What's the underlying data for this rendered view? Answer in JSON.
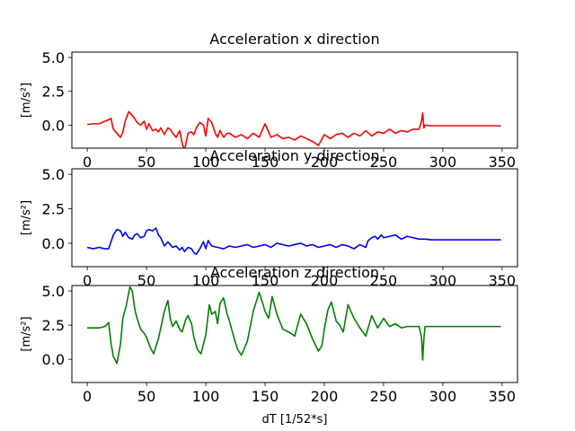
{
  "chart_data": [
    {
      "type": "line",
      "title": "Acceleration x direction",
      "ylabel": "[m/s²]",
      "xlabel": "",
      "xlim": [
        -13,
        363
      ],
      "ylim": [
        -1.7,
        5.4
      ],
      "xticks": [
        0,
        50,
        100,
        150,
        200,
        250,
        300,
        350
      ],
      "yticks": [
        0.0,
        2.5,
        5.0
      ],
      "grid": false,
      "series": [
        {
          "color": "#ff0000",
          "x": [
            0,
            5,
            10,
            15,
            18,
            20,
            22,
            25,
            28,
            30,
            32,
            35,
            38,
            40,
            42,
            45,
            48,
            50,
            52,
            55,
            58,
            60,
            62,
            65,
            68,
            70,
            72,
            75,
            78,
            80,
            82,
            85,
            88,
            90,
            92,
            95,
            98,
            100,
            102,
            105,
            108,
            110,
            112,
            115,
            118,
            120,
            125,
            130,
            135,
            140,
            145,
            150,
            155,
            160,
            165,
            170,
            175,
            180,
            185,
            190,
            195,
            200,
            205,
            210,
            215,
            220,
            225,
            230,
            235,
            240,
            245,
            250,
            255,
            260,
            265,
            270,
            275,
            280,
            282,
            283,
            284,
            285,
            290,
            300,
            310,
            320,
            330,
            340,
            349
          ],
          "y": [
            0.05,
            0.1,
            0.1,
            0.3,
            0.4,
            0.5,
            -0.3,
            -0.6,
            -0.9,
            -0.5,
            0.3,
            1.0,
            0.7,
            0.5,
            0.2,
            0.0,
            0.3,
            -0.3,
            0.1,
            -0.4,
            -0.3,
            -0.5,
            -0.2,
            -0.7,
            -0.2,
            -0.3,
            -0.6,
            -0.9,
            -0.4,
            -1.3,
            -1.9,
            -0.6,
            -0.5,
            -0.7,
            -0.2,
            0.2,
            0.0,
            -0.8,
            0.5,
            0.2,
            -0.6,
            -0.9,
            -0.4,
            -0.9,
            -0.6,
            -0.6,
            -0.9,
            -0.7,
            -1.0,
            -0.6,
            -0.9,
            0.1,
            -0.9,
            -0.7,
            -1.0,
            -0.9,
            -1.1,
            -0.8,
            -1.0,
            -1.2,
            -1.5,
            -0.7,
            -1.0,
            -0.7,
            -0.6,
            -0.9,
            -0.6,
            -0.8,
            -0.4,
            -0.8,
            -0.5,
            -0.6,
            -0.3,
            -0.6,
            -0.4,
            -0.5,
            -0.3,
            -0.3,
            0.3,
            0.9,
            -0.2,
            0.0,
            -0.05,
            -0.05,
            -0.05,
            -0.05,
            -0.05,
            -0.05,
            -0.05
          ]
        }
      ]
    },
    {
      "type": "line",
      "title": "Acceleration y direction",
      "ylabel": "[m/s²]",
      "xlabel": "",
      "xlim": [
        -13,
        363
      ],
      "ylim": [
        -1.7,
        5.4
      ],
      "xticks": [
        0,
        50,
        100,
        150,
        200,
        250,
        300,
        350
      ],
      "yticks": [
        0.0,
        2.5,
        5.0
      ],
      "grid": false,
      "series": [
        {
          "color": "#0000ff",
          "x": [
            0,
            5,
            10,
            15,
            18,
            20,
            22,
            25,
            28,
            30,
            32,
            35,
            38,
            40,
            42,
            45,
            48,
            50,
            52,
            55,
            58,
            60,
            62,
            65,
            68,
            70,
            72,
            75,
            78,
            80,
            82,
            85,
            88,
            90,
            92,
            95,
            98,
            100,
            102,
            105,
            110,
            115,
            120,
            125,
            130,
            135,
            140,
            145,
            150,
            155,
            160,
            165,
            170,
            175,
            180,
            185,
            190,
            195,
            200,
            205,
            210,
            215,
            220,
            225,
            230,
            235,
            237,
            240,
            243,
            245,
            248,
            250,
            255,
            260,
            265,
            270,
            275,
            280,
            285,
            290,
            300,
            310,
            320,
            330,
            340,
            349
          ],
          "y": [
            -0.3,
            -0.4,
            -0.3,
            -0.4,
            -0.4,
            0.1,
            0.6,
            1.0,
            0.9,
            0.5,
            0.8,
            0.4,
            0.3,
            0.6,
            0.7,
            0.4,
            0.5,
            0.9,
            1.0,
            0.9,
            1.1,
            0.6,
            0.4,
            -0.2,
            0.1,
            -0.1,
            -0.3,
            -0.2,
            -0.5,
            -0.3,
            -0.6,
            -0.3,
            -0.4,
            -0.7,
            -0.8,
            -0.4,
            0.1,
            -0.4,
            0.2,
            -0.2,
            -0.3,
            -0.4,
            -0.2,
            -0.3,
            -0.2,
            -0.1,
            -0.3,
            -0.2,
            -0.1,
            -0.3,
            0.0,
            -0.1,
            -0.2,
            -0.1,
            0.0,
            -0.2,
            -0.1,
            -0.3,
            -0.2,
            -0.1,
            -0.3,
            -0.1,
            -0.2,
            -0.4,
            -0.1,
            -0.3,
            0.2,
            0.4,
            0.5,
            0.3,
            0.6,
            0.4,
            0.5,
            0.6,
            0.3,
            0.5,
            0.4,
            0.3,
            0.3,
            0.25,
            0.25,
            0.25,
            0.25,
            0.25,
            0.25,
            0.25
          ]
        }
      ]
    },
    {
      "type": "line",
      "title": "Acceleration z direction",
      "ylabel": "[m/s²]",
      "xlabel": "dT [1/52*s]",
      "xlim": [
        -13,
        363
      ],
      "ylim": [
        -1.7,
        5.4
      ],
      "xticks": [
        0,
        50,
        100,
        150,
        200,
        250,
        300,
        350
      ],
      "yticks": [
        0.0,
        2.5,
        5.0
      ],
      "grid": false,
      "series": [
        {
          "color": "#008000",
          "x": [
            0,
            5,
            10,
            15,
            18,
            20,
            22,
            25,
            28,
            30,
            33,
            36,
            38,
            40,
            42,
            45,
            48,
            50,
            53,
            56,
            60,
            65,
            68,
            70,
            72,
            75,
            78,
            80,
            83,
            85,
            88,
            90,
            93,
            96,
            100,
            103,
            105,
            108,
            110,
            112,
            115,
            118,
            120,
            124,
            127,
            130,
            135,
            140,
            145,
            148,
            150,
            153,
            156,
            160,
            165,
            170,
            175,
            180,
            185,
            190,
            195,
            198,
            200,
            203,
            206,
            210,
            213,
            216,
            220,
            225,
            230,
            235,
            240,
            245,
            250,
            255,
            260,
            265,
            270,
            275,
            280,
            282,
            283,
            284,
            285,
            290,
            300,
            310,
            320,
            330,
            340,
            349
          ],
          "y": [
            2.3,
            2.3,
            2.3,
            2.4,
            2.7,
            1.2,
            0.2,
            -0.3,
            1.1,
            3.0,
            4.0,
            5.3,
            5.0,
            3.7,
            3.0,
            2.2,
            1.9,
            1.6,
            0.9,
            0.4,
            1.5,
            3.5,
            4.3,
            3.0,
            2.4,
            2.8,
            2.2,
            2.0,
            2.9,
            3.2,
            2.6,
            1.6,
            0.7,
            0.4,
            1.8,
            4.0,
            3.3,
            3.5,
            2.6,
            4.1,
            4.5,
            3.3,
            2.8,
            1.5,
            0.7,
            0.3,
            1.3,
            3.5,
            4.9,
            4.1,
            3.5,
            3.0,
            4.6,
            3.3,
            2.2,
            2.0,
            1.7,
            3.3,
            2.6,
            1.5,
            0.6,
            1.0,
            2.2,
            3.6,
            4.2,
            2.8,
            2.5,
            2.0,
            4.0,
            3.0,
            2.3,
            1.7,
            3.2,
            2.3,
            3.0,
            2.4,
            2.6,
            2.3,
            2.4,
            2.4,
            2.4,
            1.6,
            -0.05,
            1.5,
            2.4,
            2.4,
            2.4,
            2.4,
            2.4,
            2.4,
            2.4,
            2.4
          ]
        }
      ]
    }
  ]
}
